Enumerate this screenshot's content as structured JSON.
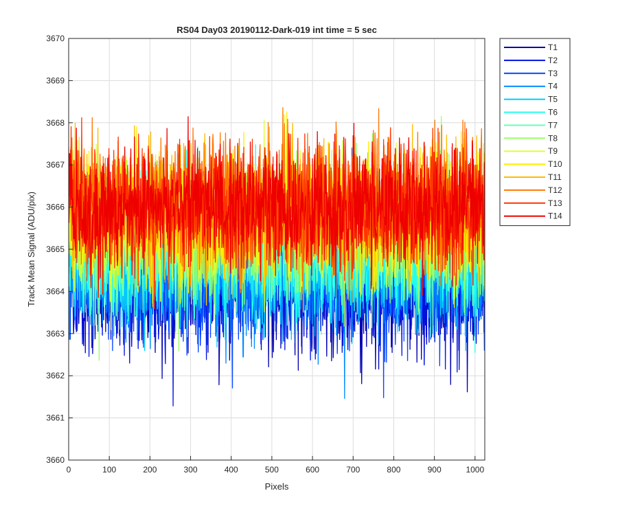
{
  "chart_data": {
    "type": "line",
    "title": "RS04 Day03 20190112-Dark-019 int time = 5 sec",
    "xlabel": "Pixels",
    "ylabel": "Track Mean Signal (ADU/pix)",
    "xlim": [
      0,
      1024
    ],
    "ylim": [
      3660,
      3670
    ],
    "xticks": [
      0,
      100,
      200,
      300,
      400,
      500,
      600,
      700,
      800,
      900,
      1000
    ],
    "yticks": [
      3660,
      3661,
      3662,
      3663,
      3664,
      3665,
      3666,
      3667,
      3668,
      3669,
      3670
    ],
    "grid": true,
    "legend_position": "outside-top-right",
    "n_points": 1024,
    "series": [
      {
        "name": "T1",
        "color": "#0000B0",
        "mean": 3664.1,
        "spread": 0.75
      },
      {
        "name": "T2",
        "color": "#0011E0",
        "mean": 3664.2,
        "spread": 0.75
      },
      {
        "name": "T3",
        "color": "#0044FF",
        "mean": 3664.3,
        "spread": 0.75
      },
      {
        "name": "T4",
        "color": "#0088FF",
        "mean": 3664.5,
        "spread": 0.75
      },
      {
        "name": "T5",
        "color": "#00CCFF",
        "mean": 3664.7,
        "spread": 0.75
      },
      {
        "name": "T6",
        "color": "#22FFEE",
        "mean": 3664.9,
        "spread": 0.75
      },
      {
        "name": "T7",
        "color": "#66FFBB",
        "mean": 3665.2,
        "spread": 0.75
      },
      {
        "name": "T8",
        "color": "#99FF66",
        "mean": 3665.4,
        "spread": 0.75
      },
      {
        "name": "T9",
        "color": "#DDFF33",
        "mean": 3665.6,
        "spread": 0.75
      },
      {
        "name": "T10",
        "color": "#FFEE00",
        "mean": 3665.8,
        "spread": 0.75
      },
      {
        "name": "T11",
        "color": "#FFBB00",
        "mean": 3665.9,
        "spread": 0.75
      },
      {
        "name": "T12",
        "color": "#FF7700",
        "mean": 3666.0,
        "spread": 0.75
      },
      {
        "name": "T13",
        "color": "#FF3300",
        "mean": 3666.0,
        "spread": 0.75
      },
      {
        "name": "T14",
        "color": "#EE0000",
        "mean": 3666.0,
        "spread": 0.75
      }
    ]
  }
}
